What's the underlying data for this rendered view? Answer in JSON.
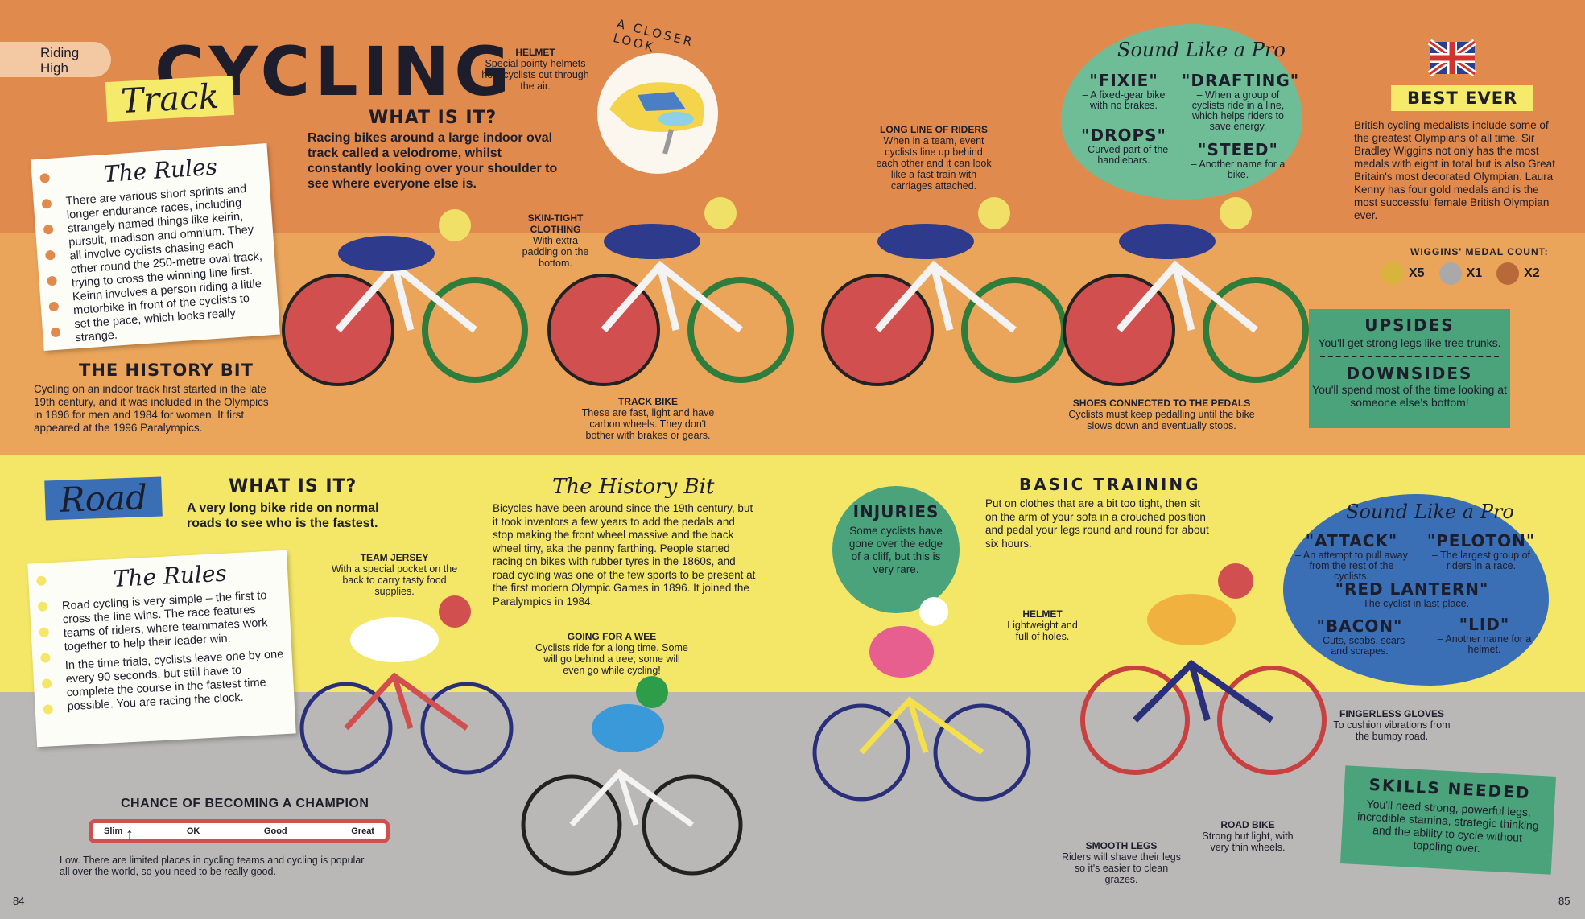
{
  "colors": {
    "orange": "#e08a4e",
    "sand": "#eba55b",
    "yellow": "#f4e667",
    "grey": "#b9b8b6",
    "green": "#4aa37b",
    "blue": "#3a6fb6",
    "red": "#d9534f",
    "navy": "#2a2f7a"
  },
  "chip": "Riding High",
  "title": "CYCLING",
  "track": {
    "tag": "Track",
    "what_heading": "WHAT IS IT?",
    "what_text": "Racing bikes around a large indoor oval track called a velodrome, whilst constantly looking over your shoulder to see where everyone else is.",
    "rules_heading": "The Rules",
    "rules_text": "There are various short sprints and longer endurance races, including strangely named things like keirin, pursuit, madison and omnium. They all involve cyclists chasing each other round the 250-metre oval track, trying to cross the winning line first. Keirin involves a person riding a little motorbike in front of the cyclists to set the pace, which looks really strange.",
    "history_heading": "THE HISTORY BIT",
    "history_text": "Cycling on an indoor track first started in the late 19th century, and it was included in the Olympics in 1896 for men and 1984 for women. It first appeared at the 1996 Paralympics.",
    "closer_look": "A CLOSER LOOK",
    "helmet_label": "HELMET",
    "helmet_text": "Special pointy helmets help cyclists cut through the air.",
    "clothing_label": "SKIN-TIGHT CLOTHING",
    "clothing_text": "With extra padding on the bottom.",
    "bike_label": "TRACK BIKE",
    "bike_text": "These are fast, light and have carbon wheels. They don't bother with brakes or gears.",
    "line_label": "LONG LINE OF RIDERS",
    "line_text": "When in a team, event cyclists line up behind each other and it can look like a fast train with carriages attached.",
    "shoes_label": "SHOES CONNECTED TO THE PEDALS",
    "shoes_text": "Cyclists must keep pedalling until the bike slows down and eventually stops.",
    "pro_heading": "Sound Like a Pro",
    "pro_terms": [
      {
        "term": "\"FIXIE\"",
        "def": "– A fixed-gear bike with no brakes."
      },
      {
        "term": "\"DRAFTING\"",
        "def": "– When a group of cyclists ride in a line, which helps riders to save energy."
      },
      {
        "term": "\"DROPS\"",
        "def": "– Curved part of the handlebars."
      },
      {
        "term": "\"STEED\"",
        "def": "– Another name for a bike."
      }
    ],
    "best_heading": "BEST EVER",
    "best_text": "British cycling medalists include some of the greatest Olympians of all time. Sir Bradley Wiggins not only has the most medals with eight in total but is also Great Britain's most decorated Olympian. Laura Kenny has four gold medals and is the most successful female British Olympian ever.",
    "medal_heading": "WIGGINS' MEDAL COUNT:",
    "medals": [
      {
        "label": "X5",
        "color": "#d9b43c"
      },
      {
        "label": "X1",
        "color": "#a9a9a9"
      },
      {
        "label": "X2",
        "color": "#b8693a"
      }
    ],
    "upsides_heading": "UPSIDES",
    "upsides_text": "You'll get strong legs like tree trunks.",
    "downsides_heading": "DOWNSIDES",
    "downsides_text": "You'll spend most of the time looking at someone else's bottom!"
  },
  "road": {
    "tag": "Road",
    "what_heading": "WHAT IS IT?",
    "what_text": "A very long bike ride on normal roads to see who is the fastest.",
    "rules_heading": "The Rules",
    "rules_text_1": "Road cycling is very simple – the first to cross the line wins. The race features teams of riders, where teammates work together to help their leader win.",
    "rules_text_2": "In the time trials, cyclists leave one by one every 90 seconds, but still have to complete the course in the fastest time possible. You are racing the clock.",
    "history_heading": "The History Bit",
    "history_text": "Bicycles have been around since the 19th century, but it took inventors a few years to add the pedals and stop making the front wheel massive and the back wheel tiny, aka the penny farthing. People started racing on bikes with rubber tyres in the 1860s, and road cycling was one of the few sports to be present at the first modern Olympic Games in 1896. It joined the Paralympics in 1984.",
    "jersey_label": "TEAM JERSEY",
    "jersey_text": "With a special pocket on the back to carry tasty food supplies.",
    "wee_label": "GOING FOR A WEE",
    "wee_text": "Cyclists ride for a long time. Some will go behind a tree; some will even go while cycling!",
    "injuries_heading": "INJURIES",
    "injuries_text": "Some cyclists have gone over the edge of a cliff, but this is very rare.",
    "training_heading": "BASIC TRAINING",
    "training_text": "Put on clothes that are a bit too tight, then sit on the arm of your sofa in a crouched position and pedal your legs round and round for about six hours.",
    "helmet_label": "HELMET",
    "helmet_text": "Lightweight and full of holes.",
    "legs_label": "SMOOTH LEGS",
    "legs_text": "Riders will shave their legs so it's easier to clean grazes.",
    "bike_label": "ROAD BIKE",
    "bike_text": "Strong but light, with very thin wheels.",
    "gloves_label": "FINGERLESS GLOVES",
    "gloves_text": "To cushion vibrations from the bumpy road.",
    "pro_heading": "Sound Like a Pro",
    "pro_terms": [
      {
        "term": "\"ATTACK\"",
        "def": "– An attempt to pull away from the rest of the cyclists."
      },
      {
        "term": "\"PELOTON\"",
        "def": "– The largest group of riders in a race."
      },
      {
        "term": "\"RED LANTERN\"",
        "def": "– The cyclist in last place."
      },
      {
        "term": "\"BACON\"",
        "def": "– Cuts, scabs, scars and scrapes."
      },
      {
        "term": "\"LID\"",
        "def": "– Another name for a helmet."
      }
    ],
    "skills_heading": "SKILLS NEEDED",
    "skills_text": "You'll need strong, powerful legs, incredible stamina, strategic thinking and the ability to cycle without toppling over.",
    "chance_heading": "CHANCE OF BECOMING A CHAMPION",
    "chance_levels": [
      "Slim",
      "OK",
      "Good",
      "Great"
    ],
    "chance_value": "Slim",
    "chance_text": "Low. There are limited places in cycling teams and cycling is popular all over the world, so you need to be really good."
  },
  "pages": {
    "left": "84",
    "right": "85"
  }
}
